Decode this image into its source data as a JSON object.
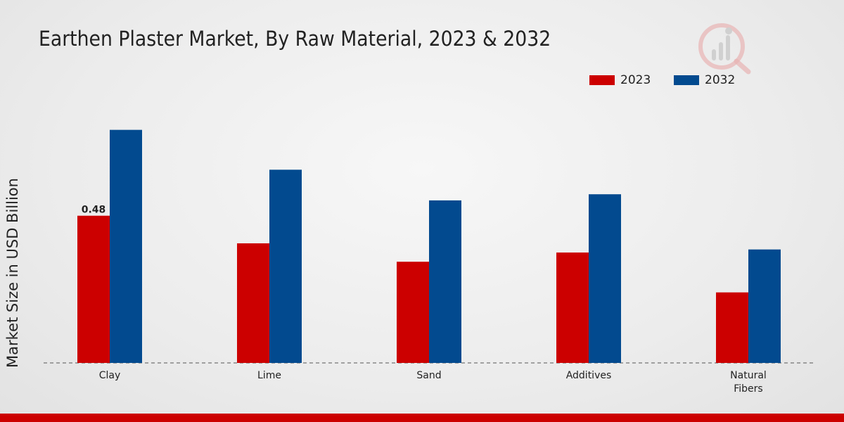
{
  "chart_data": {
    "type": "bar",
    "title": "Earthen Plaster Market, By Raw Material, 2023 & 2032",
    "xlabel": "",
    "ylabel": "Market Size in USD Billion",
    "categories": [
      "Clay",
      "Lime",
      "Sand",
      "Additives",
      "Natural Fibers"
    ],
    "series": [
      {
        "name": "2023",
        "color": "#cc0000",
        "values": [
          0.48,
          0.39,
          0.33,
          0.36,
          0.23
        ]
      },
      {
        "name": "2032",
        "color": "#024a8f",
        "values": [
          0.76,
          0.63,
          0.53,
          0.55,
          0.37
        ]
      }
    ],
    "data_labels": [
      {
        "series": "2023",
        "category": "Clay",
        "text": "0.48"
      }
    ],
    "ylim": [
      0,
      1.0
    ],
    "grid": false,
    "legend": "top-right"
  }
}
